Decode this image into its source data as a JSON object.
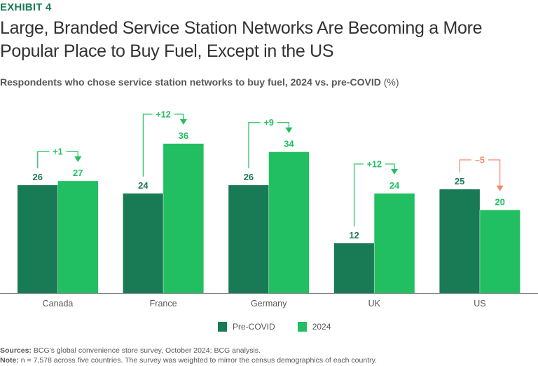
{
  "header": {
    "exhibit": "EXHIBIT 4",
    "title": "Large, Branded Service Station Networks Are Becoming a More Popular Place to Buy Fuel, Except in the US",
    "subtitle": "Respondents who chose service station networks to buy fuel, 2024 vs. pre-COVID",
    "subtitle_unit": " (%)"
  },
  "colors": {
    "pre_covid": "#197a56",
    "y2024": "#21bf61",
    "increase": "#21bf61",
    "decrease": "#f08a6c",
    "label_pre": "#197a56",
    "label_2024": "#21bf61",
    "axis": "#7f7f7f",
    "text": "#575757"
  },
  "chart_data": {
    "type": "bar",
    "title": "Respondents who chose service station networks to buy fuel, 2024 vs. pre-COVID (%)",
    "xlabel": "",
    "ylabel": "",
    "categories": [
      "Canada",
      "France",
      "Germany",
      "UK",
      "US"
    ],
    "series": [
      {
        "name": "Pre-COVID",
        "values": [
          26,
          24,
          26,
          12,
          25
        ]
      },
      {
        "name": "2024",
        "values": [
          27,
          36,
          34,
          24,
          20
        ]
      }
    ],
    "changes": [
      "+1",
      "+12",
      "+9",
      "+12",
      "–5"
    ],
    "change_direction": [
      "up",
      "up",
      "up",
      "up",
      "down"
    ],
    "ylim": [
      0,
      36
    ],
    "grid": false,
    "legend_position": "bottom-center"
  },
  "legend": {
    "items": [
      {
        "label": "Pre-COVID"
      },
      {
        "label": "2024"
      }
    ]
  },
  "footer": {
    "sources_label": "Sources:",
    "sources_text": " BCG’s global convenience store survey, October 2024; BCG analysis.",
    "note_label": "Note:",
    "note_text": " n = 7,578 across five countries. The survey was weighted to mirror the census demographics of each country."
  }
}
